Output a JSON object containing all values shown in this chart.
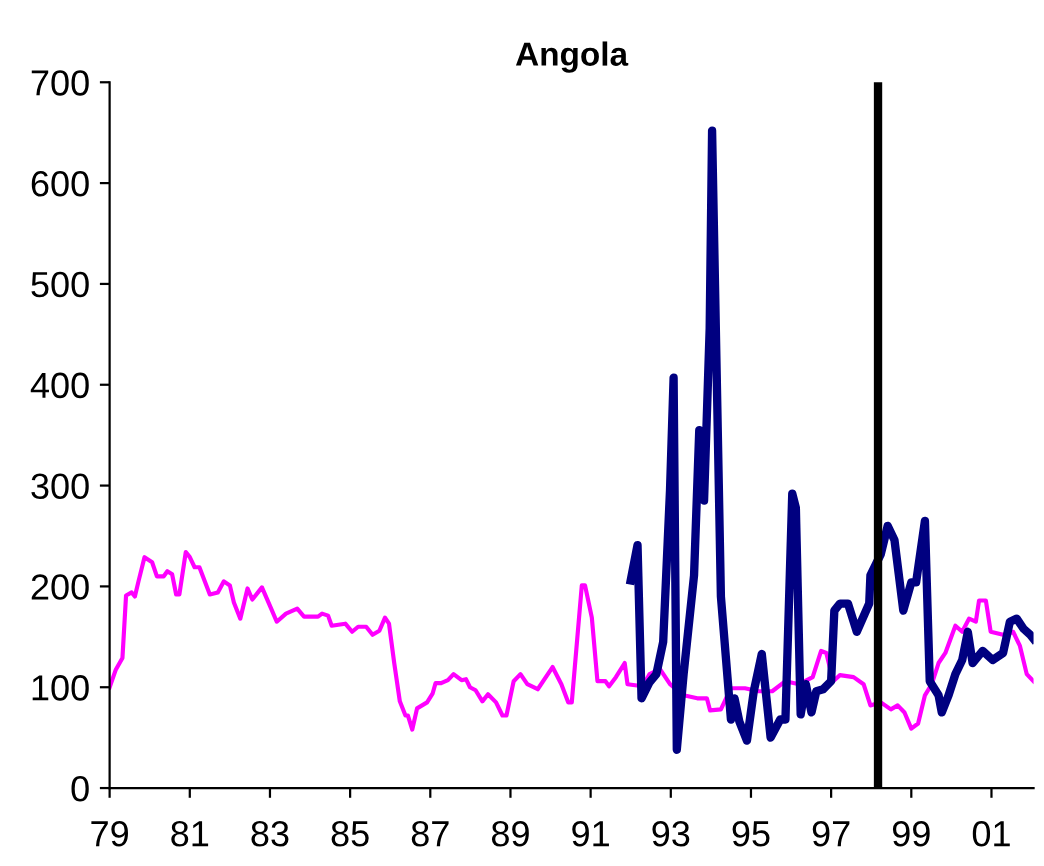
{
  "chart_data": {
    "type": "line",
    "title": "Angola",
    "xlim": [
      1979,
      2002.05
    ],
    "ylim": [
      0,
      700
    ],
    "xticks": [
      {
        "value": 1979,
        "label": "79"
      },
      {
        "value": 1981,
        "label": "81"
      },
      {
        "value": 1983,
        "label": "83"
      },
      {
        "value": 1985,
        "label": "85"
      },
      {
        "value": 1987,
        "label": "87"
      },
      {
        "value": 1989,
        "label": "89"
      },
      {
        "value": 1991,
        "label": "91"
      },
      {
        "value": 1993,
        "label": "93"
      },
      {
        "value": 1995,
        "label": "95"
      },
      {
        "value": 1997,
        "label": "97"
      },
      {
        "value": 1999,
        "label": "99"
      },
      {
        "value": 2001,
        "label": "01"
      }
    ],
    "yticks": [
      0,
      100,
      200,
      300,
      400,
      500,
      600,
      700
    ],
    "grid": false,
    "legend": false,
    "marker": "none",
    "line_style": "solid",
    "ref_lines": [
      {
        "axis": "x",
        "value": 1998.17,
        "color": "#000000"
      }
    ],
    "series": [
      {
        "color": "#ff00ff",
        "x": [
          1979.0,
          1979.15,
          1979.32,
          1979.41,
          1979.55,
          1979.63,
          1979.72,
          1979.87,
          1980.06,
          1980.18,
          1980.35,
          1980.44,
          1980.56,
          1980.66,
          1980.74,
          1980.9,
          1981.0,
          1981.12,
          1981.24,
          1981.5,
          1981.7,
          1981.85,
          1982.0,
          1982.1,
          1982.26,
          1982.44,
          1982.56,
          1982.8,
          1983.03,
          1983.17,
          1983.4,
          1983.68,
          1983.85,
          1984.2,
          1984.3,
          1984.45,
          1984.54,
          1984.88,
          1985.05,
          1985.2,
          1985.4,
          1985.56,
          1985.73,
          1985.87,
          1985.97,
          1986.1,
          1986.24,
          1986.38,
          1986.44,
          1986.55,
          1986.67,
          1986.92,
          1987.06,
          1987.13,
          1987.27,
          1987.44,
          1987.58,
          1987.78,
          1987.89,
          1987.99,
          1988.13,
          1988.3,
          1988.44,
          1988.64,
          1988.8,
          1988.9,
          1989.08,
          1989.25,
          1989.42,
          1989.68,
          1990.05,
          1990.27,
          1990.44,
          1990.53,
          1990.78,
          1990.86,
          1991.03,
          1991.17,
          1991.37,
          1991.46,
          1991.63,
          1991.85,
          1991.92,
          1992.3,
          1992.47,
          1992.73,
          1992.98,
          1993.32,
          1993.66,
          1993.9,
          1993.98,
          1994.25,
          1994.5,
          1994.85,
          1995.19,
          1995.53,
          1995.86,
          1996.2,
          1996.54,
          1996.75,
          1996.88,
          1997.05,
          1997.22,
          1997.56,
          1997.81,
          1997.98,
          1998.24,
          1998.49,
          1998.66,
          1998.83,
          1999.0,
          1999.17,
          1999.34,
          1999.51,
          1999.68,
          1999.85,
          2000.1,
          2000.27,
          2000.44,
          2000.61,
          2000.69,
          2000.86,
          2000.98,
          2001.29,
          2001.54,
          2001.71,
          2001.88,
          2002.05
        ],
        "values": [
          100,
          117,
          129,
          191,
          194,
          190,
          205,
          229,
          224,
          210,
          210,
          215,
          212,
          192,
          192,
          234,
          229,
          219,
          219,
          192,
          194,
          205,
          201,
          184,
          168,
          198,
          187,
          199,
          178,
          165,
          173,
          178,
          170,
          170,
          173,
          171,
          161,
          163,
          155,
          160,
          160,
          152,
          156,
          169,
          163,
          124,
          86,
          72,
          72,
          58,
          79,
          85,
          94,
          104,
          104,
          107,
          113,
          107,
          108,
          100,
          97,
          86,
          93,
          85,
          72,
          72,
          106,
          113,
          103,
          98,
          120,
          103,
          85,
          85,
          201,
          201,
          169,
          106,
          106,
          101,
          110,
          124,
          103,
          101,
          113,
          118,
          103,
          92,
          89,
          89,
          77,
          78,
          99,
          99,
          96,
          96,
          106,
          103,
          110,
          136,
          134,
          106,
          112,
          110,
          103,
          82,
          85,
          78,
          82,
          75,
          59,
          64,
          92,
          103,
          124,
          134,
          161,
          155,
          168,
          165,
          186,
          186,
          155,
          152,
          155,
          141,
          113,
          106
        ]
      },
      {
        "color": "#000080",
        "x": [
          1992.0,
          1992.17,
          1992.27,
          1992.47,
          1992.64,
          1992.81,
          1992.98,
          1993.07,
          1993.15,
          1993.32,
          1993.58,
          1993.71,
          1993.83,
          1993.97,
          1994.03,
          1994.25,
          1994.5,
          1994.59,
          1994.71,
          1994.9,
          1995.07,
          1995.27,
          1995.49,
          1995.73,
          1995.86,
          1996.03,
          1996.12,
          1996.24,
          1996.37,
          1996.51,
          1996.63,
          1996.8,
          1997.0,
          1997.08,
          1997.22,
          1997.42,
          1997.64,
          1997.95,
          1997.98,
          1998.24,
          1998.41,
          1998.58,
          1998.8,
          1999.0,
          1999.12,
          1999.34,
          1999.46,
          1999.68,
          1999.76,
          1999.93,
          2000.1,
          2000.27,
          2000.41,
          2000.53,
          2000.78,
          2001.03,
          2001.29,
          2001.46,
          2001.63,
          2001.8,
          2001.97,
          2002.05
        ],
        "values": [
          206,
          241,
          89,
          105,
          113,
          145,
          295,
          407,
          38,
          113,
          211,
          355,
          285,
          456,
          652,
          190,
          68,
          89,
          66,
          47,
          96,
          133,
          50,
          68,
          68,
          292,
          278,
          73,
          103,
          75,
          96,
          98,
          106,
          176,
          183,
          183,
          155,
          183,
          211,
          232,
          260,
          246,
          176,
          204,
          204,
          265,
          106,
          92,
          75,
          92,
          113,
          127,
          155,
          124,
          136,
          127,
          134,
          165,
          168,
          158,
          152,
          148
        ]
      }
    ]
  }
}
